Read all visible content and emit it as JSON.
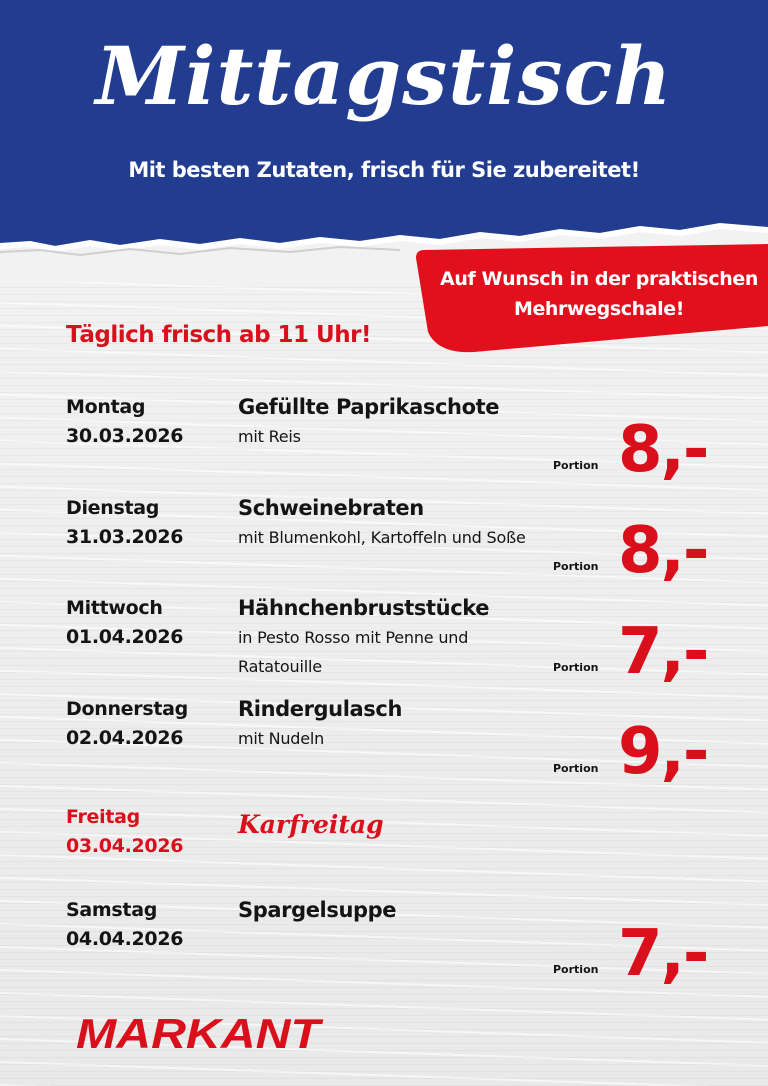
{
  "header": {
    "title": "Mittagstisch",
    "subtitle": "Mit besten Zutaten, frisch für Sie zubereitet!"
  },
  "badge": {
    "line1": "Auf Wunsch in der praktischen",
    "line2": "Mehrwegschale!"
  },
  "tagline": "Täglich frisch ab 11 Uhr!",
  "menu": [
    {
      "day": "Montag",
      "date": "30.03.2026",
      "dish": "Gefüllte Paprikaschote",
      "desc1": "mit Reis",
      "desc2": "",
      "portion": "Portion",
      "price": "8,-"
    },
    {
      "day": "Dienstag",
      "date": "31.03.2026",
      "dish": "Schweinebraten",
      "desc1": "mit Blumenkohl, Kartoffeln und Soße",
      "desc2": "",
      "portion": "Portion",
      "price": "8,-"
    },
    {
      "day": "Mittwoch",
      "date": "01.04.2026",
      "dish": "Hähnchenbruststücke",
      "desc1": "in Pesto Rosso mit Penne und",
      "desc2": "Ratatouille",
      "portion": "Portion",
      "price": "7,-"
    },
    {
      "day": "Donnerstag",
      "date": "02.04.2026",
      "dish": "Rindergulasch",
      "desc1": "mit Nudeln",
      "desc2": "",
      "portion": "Portion",
      "price": "9,-"
    },
    {
      "day": "Freitag",
      "date": "03.04.2026",
      "holiday": "Karfreitag"
    },
    {
      "day": "Samstag",
      "date": "04.04.2026",
      "dish": "Spargelsuppe",
      "desc1": "",
      "desc2": "",
      "portion": "Portion",
      "price": "7,-"
    }
  ],
  "logo": {
    "text": "MARKANT"
  },
  "colors": {
    "blue": "#223c8f",
    "red": "#d9101c",
    "text": "#141414"
  }
}
